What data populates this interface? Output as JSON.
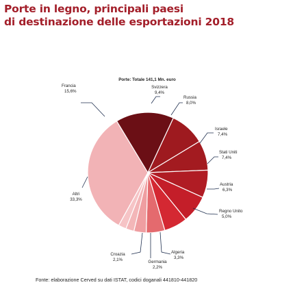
{
  "title": {
    "line1": "Porte in legno, principali paesi",
    "line2": "di destinazione delle esportazioni 2018"
  },
  "source": "Fonte: elaborazione Cerved su dati ISTAT,  codici doganali  441810-441820",
  "chart_data": {
    "type": "pie",
    "total_label": "Porte: Totale 141,1 Mn. euro",
    "slices": [
      {
        "label": "Svizzera",
        "value": 9.4,
        "value_label": "9,4%",
        "color": "#9e1a1f"
      },
      {
        "label": "Russia",
        "value": 8.0,
        "value_label": "8,0%",
        "color": "#a31b20"
      },
      {
        "label": "Israele",
        "value": 7.4,
        "value_label": "7,4%",
        "color": "#b01c24"
      },
      {
        "label": "Stati Uniti",
        "value": 7.4,
        "value_label": "7,4%",
        "color": "#c41e29"
      },
      {
        "label": "Austria",
        "value": 6.3,
        "value_label": "6,3%",
        "color": "#d42832"
      },
      {
        "label": "Regno Unito",
        "value": 5.0,
        "value_label": "5,0%",
        "color": "#e46a6e"
      },
      {
        "label": "Algeria",
        "value": 3.3,
        "value_label": "3,3%",
        "color": "#ef9ea1"
      },
      {
        "label": "Germania",
        "value": 2.2,
        "value_label": "2,2%",
        "color": "#f3b6b8"
      },
      {
        "label": "Croazia",
        "value": 2.1,
        "value_label": "2,1%",
        "color": "#f6c4c6"
      },
      {
        "label": "Altri",
        "value": 33.3,
        "value_label": "33,3%",
        "color": "#f2b3b6"
      },
      {
        "label": "Francia",
        "value": 15.6,
        "value_label": "15,6%",
        "color": "#6b0f15"
      }
    ]
  }
}
